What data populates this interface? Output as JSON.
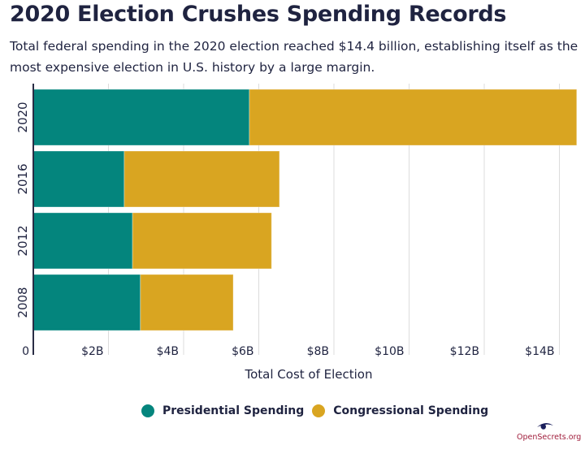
{
  "header": {
    "title": "2020 Election Crushes Spending Records",
    "subtitle": "Total federal spending in the 2020 election reached $14.4 billion, establishing itself as the most expensive election in U.S. history by a large margin."
  },
  "colors": {
    "presidential": "#04857d",
    "congressional": "#d9a521",
    "gridline": "#dcdcdc",
    "axis": "#2a2d45",
    "text": "#1f2340",
    "logo": "#a01e3c",
    "logo_eye": "#1a1f5c"
  },
  "chart_data": {
    "type": "bar",
    "orientation": "horizontal",
    "stacked": true,
    "title": "2020 Election Crushes Spending Records",
    "xlabel": "Total Cost of Election",
    "ylabel": "",
    "categories": [
      "2020",
      "2016",
      "2012",
      "2008"
    ],
    "series": [
      {
        "name": "Presidential Spending",
        "values": [
          5.75,
          2.42,
          2.64,
          2.85
        ]
      },
      {
        "name": "Congressional Spending",
        "values": [
          8.71,
          4.13,
          3.7,
          2.47
        ]
      }
    ],
    "units": "billions USD",
    "xlim": [
      0,
      14.5
    ],
    "xticks": [
      0,
      2,
      4,
      6,
      8,
      10,
      12,
      14
    ],
    "xtick_labels": [
      "0",
      "$2B",
      "$4B",
      "$6B",
      "$8B",
      "$10B",
      "$12B",
      "$14B"
    ],
    "grid": true,
    "legend_position": "bottom-center"
  },
  "legend": {
    "items": [
      {
        "label": "Presidential Spending"
      },
      {
        "label": "Congressional Spending"
      }
    ]
  },
  "footer": {
    "logo_text": "OpenSecrets.org"
  }
}
